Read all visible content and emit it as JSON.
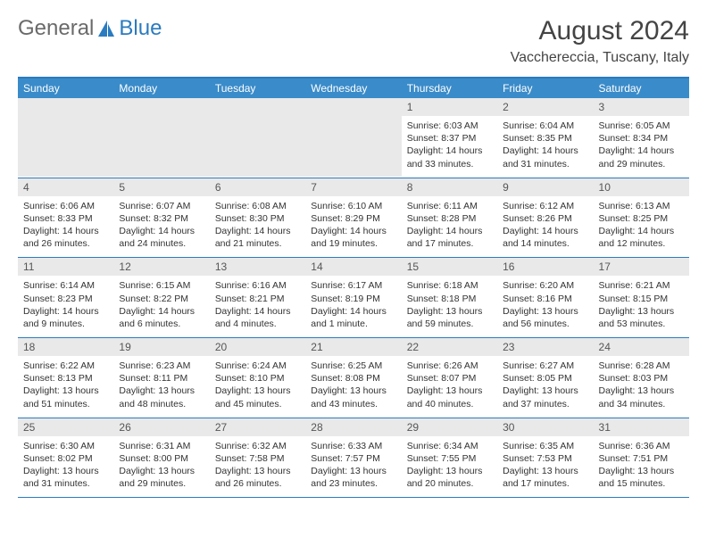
{
  "logo": {
    "text1": "General",
    "text2": "Blue"
  },
  "title": "August 2024",
  "location": "Vacchereccia, Tuscany, Italy",
  "colors": {
    "header_bg": "#3a8bc9",
    "header_text": "#ffffff",
    "border": "#2b7bbf",
    "daynum_bg": "#e9e9e9",
    "body_text": "#333333"
  },
  "day_headers": [
    "Sunday",
    "Monday",
    "Tuesday",
    "Wednesday",
    "Thursday",
    "Friday",
    "Saturday"
  ],
  "weeks": [
    [
      null,
      null,
      null,
      null,
      {
        "n": "1",
        "sr": "6:03 AM",
        "ss": "8:37 PM",
        "dl": "14 hours and 33 minutes."
      },
      {
        "n": "2",
        "sr": "6:04 AM",
        "ss": "8:35 PM",
        "dl": "14 hours and 31 minutes."
      },
      {
        "n": "3",
        "sr": "6:05 AM",
        "ss": "8:34 PM",
        "dl": "14 hours and 29 minutes."
      }
    ],
    [
      {
        "n": "4",
        "sr": "6:06 AM",
        "ss": "8:33 PM",
        "dl": "14 hours and 26 minutes."
      },
      {
        "n": "5",
        "sr": "6:07 AM",
        "ss": "8:32 PM",
        "dl": "14 hours and 24 minutes."
      },
      {
        "n": "6",
        "sr": "6:08 AM",
        "ss": "8:30 PM",
        "dl": "14 hours and 21 minutes."
      },
      {
        "n": "7",
        "sr": "6:10 AM",
        "ss": "8:29 PM",
        "dl": "14 hours and 19 minutes."
      },
      {
        "n": "8",
        "sr": "6:11 AM",
        "ss": "8:28 PM",
        "dl": "14 hours and 17 minutes."
      },
      {
        "n": "9",
        "sr": "6:12 AM",
        "ss": "8:26 PM",
        "dl": "14 hours and 14 minutes."
      },
      {
        "n": "10",
        "sr": "6:13 AM",
        "ss": "8:25 PM",
        "dl": "14 hours and 12 minutes."
      }
    ],
    [
      {
        "n": "11",
        "sr": "6:14 AM",
        "ss": "8:23 PM",
        "dl": "14 hours and 9 minutes."
      },
      {
        "n": "12",
        "sr": "6:15 AM",
        "ss": "8:22 PM",
        "dl": "14 hours and 6 minutes."
      },
      {
        "n": "13",
        "sr": "6:16 AM",
        "ss": "8:21 PM",
        "dl": "14 hours and 4 minutes."
      },
      {
        "n": "14",
        "sr": "6:17 AM",
        "ss": "8:19 PM",
        "dl": "14 hours and 1 minute."
      },
      {
        "n": "15",
        "sr": "6:18 AM",
        "ss": "8:18 PM",
        "dl": "13 hours and 59 minutes."
      },
      {
        "n": "16",
        "sr": "6:20 AM",
        "ss": "8:16 PM",
        "dl": "13 hours and 56 minutes."
      },
      {
        "n": "17",
        "sr": "6:21 AM",
        "ss": "8:15 PM",
        "dl": "13 hours and 53 minutes."
      }
    ],
    [
      {
        "n": "18",
        "sr": "6:22 AM",
        "ss": "8:13 PM",
        "dl": "13 hours and 51 minutes."
      },
      {
        "n": "19",
        "sr": "6:23 AM",
        "ss": "8:11 PM",
        "dl": "13 hours and 48 minutes."
      },
      {
        "n": "20",
        "sr": "6:24 AM",
        "ss": "8:10 PM",
        "dl": "13 hours and 45 minutes."
      },
      {
        "n": "21",
        "sr": "6:25 AM",
        "ss": "8:08 PM",
        "dl": "13 hours and 43 minutes."
      },
      {
        "n": "22",
        "sr": "6:26 AM",
        "ss": "8:07 PM",
        "dl": "13 hours and 40 minutes."
      },
      {
        "n": "23",
        "sr": "6:27 AM",
        "ss": "8:05 PM",
        "dl": "13 hours and 37 minutes."
      },
      {
        "n": "24",
        "sr": "6:28 AM",
        "ss": "8:03 PM",
        "dl": "13 hours and 34 minutes."
      }
    ],
    [
      {
        "n": "25",
        "sr": "6:30 AM",
        "ss": "8:02 PM",
        "dl": "13 hours and 31 minutes."
      },
      {
        "n": "26",
        "sr": "6:31 AM",
        "ss": "8:00 PM",
        "dl": "13 hours and 29 minutes."
      },
      {
        "n": "27",
        "sr": "6:32 AM",
        "ss": "7:58 PM",
        "dl": "13 hours and 26 minutes."
      },
      {
        "n": "28",
        "sr": "6:33 AM",
        "ss": "7:57 PM",
        "dl": "13 hours and 23 minutes."
      },
      {
        "n": "29",
        "sr": "6:34 AM",
        "ss": "7:55 PM",
        "dl": "13 hours and 20 minutes."
      },
      {
        "n": "30",
        "sr": "6:35 AM",
        "ss": "7:53 PM",
        "dl": "13 hours and 17 minutes."
      },
      {
        "n": "31",
        "sr": "6:36 AM",
        "ss": "7:51 PM",
        "dl": "13 hours and 15 minutes."
      }
    ]
  ],
  "labels": {
    "sunrise": "Sunrise:",
    "sunset": "Sunset:",
    "daylight": "Daylight:"
  }
}
